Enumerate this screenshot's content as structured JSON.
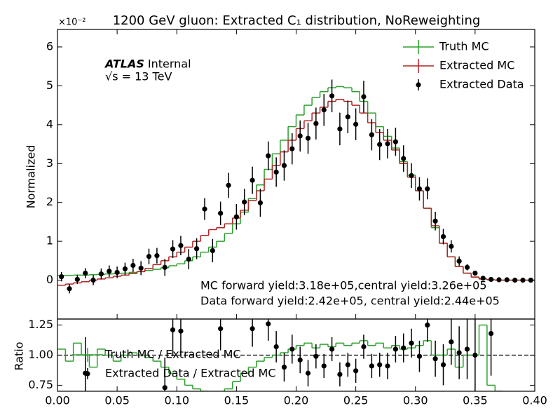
{
  "chart_data": [
    {
      "type": "histogram",
      "title": "1200 GeV gluon: Extracted C₁ distribution, NoReweighting",
      "ylabel": "Normalized",
      "y_multiplier": "×10⁻²",
      "annotations": [
        "ATLAS",
        "Internal",
        "√s = 13 TeV",
        "MC forward yield:3.18e+05,central yield:3.26e+05",
        "Data forward yield:2.42e+05, central yield:2.44e+05"
      ],
      "legend": "upper right",
      "xlim": [
        0,
        0.4
      ],
      "ylim": [
        -1.0,
        6.45
      ],
      "yticks": [
        0,
        1,
        2,
        3,
        4,
        5,
        6
      ],
      "bins": [
        0,
        0.0067,
        0.0133,
        0.02,
        0.0267,
        0.0333,
        0.04,
        0.0467,
        0.0533,
        0.06,
        0.0667,
        0.0733,
        0.08,
        0.0867,
        0.0933,
        0.1,
        0.1067,
        0.1133,
        0.12,
        0.1267,
        0.1333,
        0.14,
        0.1467,
        0.1533,
        0.16,
        0.1667,
        0.1733,
        0.18,
        0.1867,
        0.1933,
        0.2,
        0.2067,
        0.2133,
        0.22,
        0.2267,
        0.2333,
        0.24,
        0.2467,
        0.2533,
        0.26,
        0.2667,
        0.2733,
        0.28,
        0.2867,
        0.2933,
        0.3,
        0.3067,
        0.3133,
        0.32,
        0.3267,
        0.3333,
        0.34,
        0.3467,
        0.3533,
        0.36,
        0.3667,
        0.3733,
        0.38,
        0.3867,
        0.3933,
        0.4
      ],
      "series": [
        {
          "name": "Truth MC",
          "style": "step",
          "color": "#2ca02c",
          "values": [
            0.12,
            0.12,
            0.13,
            0.13,
            0.14,
            0.15,
            0.16,
            0.17,
            0.18,
            0.2,
            0.22,
            0.25,
            0.28,
            0.32,
            0.37,
            0.42,
            0.5,
            0.6,
            0.72,
            0.85,
            1.0,
            1.2,
            1.45,
            1.75,
            2.1,
            2.45,
            2.85,
            3.25,
            3.6,
            3.95,
            4.25,
            4.5,
            4.7,
            4.85,
            4.95,
            4.98,
            4.95,
            4.85,
            4.6,
            4.3,
            3.95,
            3.7,
            3.4,
            3.05,
            2.7,
            2.3,
            1.85,
            1.35,
            0.95,
            0.6,
            0.35,
            0.18,
            0.08,
            0.03,
            0.01,
            0,
            0,
            0,
            0,
            0
          ]
        },
        {
          "name": "Extracted MC",
          "style": "step",
          "color": "#b22222",
          "values": [
            -0.13,
            -0.1,
            -0.07,
            -0.04,
            0,
            0.03,
            0.06,
            0.1,
            0.13,
            0.17,
            0.22,
            0.3,
            0.4,
            0.5,
            0.6,
            0.72,
            0.85,
            1.0,
            1.15,
            1.3,
            1.35,
            1.45,
            1.6,
            1.8,
            2.05,
            2.3,
            2.6,
            2.95,
            3.3,
            3.6,
            3.9,
            4.1,
            4.3,
            4.45,
            4.6,
            4.65,
            4.6,
            4.5,
            4.3,
            4.05,
            3.8,
            3.6,
            3.35,
            3.0,
            2.65,
            2.3,
            1.85,
            1.4,
            0.95,
            0.6,
            0.35,
            0.18,
            0.08,
            0.03,
            0.01,
            0,
            0,
            0,
            0,
            0
          ]
        },
        {
          "name": "Extracted Data",
          "style": "points",
          "color": "#000000",
          "values": [
            0.09,
            -0.22,
            0.02,
            0.18,
            0.0,
            0.16,
            0.23,
            0.2,
            0.29,
            0.38,
            0.31,
            0.61,
            0.63,
            0.33,
            0.8,
            0.89,
            0.54,
            0.81,
            1.83,
            0.76,
            1.72,
            2.44,
            1.63,
            2.01,
            2.57,
            1.99,
            3.2,
            2.78,
            2.95,
            3.38,
            3.71,
            3.65,
            4.03,
            4.38,
            4.74,
            3.89,
            4.2,
            4.01,
            4.72,
            3.74,
            3.49,
            3.51,
            3.56,
            3.13,
            2.69,
            2.35,
            2.35,
            1.52,
            1.12,
            0.87,
            0.49,
            0.33,
            0.18,
            0.05,
            0.02,
            0.01,
            0.01,
            0,
            0,
            0
          ],
          "errors": [
            0.12,
            0.12,
            0.12,
            0.13,
            0.13,
            0.14,
            0.15,
            0.15,
            0.16,
            0.17,
            0.18,
            0.2,
            0.2,
            0.22,
            0.23,
            0.25,
            0.26,
            0.27,
            0.28,
            0.3,
            0.3,
            0.32,
            0.33,
            0.34,
            0.35,
            0.36,
            0.37,
            0.38,
            0.39,
            0.4,
            0.4,
            0.4,
            0.41,
            0.41,
            0.42,
            0.42,
            0.42,
            0.41,
            0.41,
            0.4,
            0.4,
            0.38,
            0.36,
            0.34,
            0.32,
            0.3,
            0.27,
            0.24,
            0.2,
            0.16,
            0.12,
            0.08,
            0.06,
            0.04,
            0.03,
            0.02,
            0.02,
            0.02,
            0.01,
            0.01
          ]
        }
      ]
    },
    {
      "type": "ratio",
      "ylabel": "Ratio",
      "legend": "upper left",
      "xlim": [
        0,
        0.4
      ],
      "xticks": [
        {
          "value": 0,
          "label": "0.00"
        },
        0.05,
        {
          "value": 0.1,
          "label": "0.10"
        },
        0.15,
        {
          "value": 0.2,
          "label": "0.20"
        },
        0.25,
        {
          "value": 0.3,
          "label": "0.30"
        },
        0.35,
        {
          "value": 0.4,
          "label": "0.40"
        }
      ],
      "ylim": [
        0.7,
        1.3
      ],
      "yticks": [
        0.75,
        {
          "value": 1,
          "label": "1.00"
        },
        1.25
      ],
      "reference_line": 1,
      "series": [
        {
          "name": "Truth MC / Extracted MC",
          "style": "step",
          "color": "#2ca02c",
          "values": [
            1.05,
            0.95,
            1.1,
            1.0,
            0.9,
            1.05,
            1.0,
            0.95,
            1.0,
            1.02,
            1.0,
            0.98,
            0.95,
            0.9,
            0.85,
            0.8,
            0.75,
            0.72,
            0.7,
            0.68,
            0.66,
            0.72,
            0.78,
            0.85,
            0.9,
            0.95,
            0.98,
            1.0,
            1.02,
            1.05,
            1.08,
            1.1,
            1.06,
            1.09,
            1.07,
            1.1,
            1.08,
            1.1,
            1.12,
            1.08,
            1.1,
            1.06,
            1.08,
            1.05,
            1.06,
            1.08,
            1.12,
            1.0,
            1.0,
            1.05,
            0.9,
            1.0,
            1.0,
            1.25,
            0.75,
            0.7,
            null,
            null,
            null,
            null
          ]
        },
        {
          "name": "Extracted Data / Extracted MC",
          "style": "points",
          "color": "#000000",
          "values": [
            null,
            null,
            null,
            0.85,
            null,
            null,
            null,
            null,
            null,
            null,
            null,
            null,
            null,
            0.73,
            1.21,
            1.2,
            null,
            null,
            null,
            null,
            1.22,
            null,
            null,
            null,
            1.22,
            null,
            1.26,
            1.07,
            0.9,
            1.05,
            0.96,
            0.85,
            0.99,
            0.91,
            1.05,
            0.84,
            0.92,
            0.87,
            1.07,
            0.91,
            0.92,
            0.91,
            1.05,
            1.06,
            1.1,
            0.99,
            1.25,
            0.97,
            0.92,
            1.11,
            1.02,
            1.05,
            1.0,
            null,
            1.18,
            null,
            null,
            null,
            null,
            null
          ],
          "errors": [
            null,
            null,
            null,
            0.3,
            null,
            null,
            null,
            null,
            null,
            null,
            null,
            null,
            null,
            0.25,
            0.22,
            0.2,
            null,
            null,
            null,
            null,
            0.18,
            null,
            null,
            null,
            0.15,
            null,
            0.14,
            0.13,
            0.12,
            0.12,
            0.11,
            0.11,
            0.1,
            0.1,
            0.1,
            0.1,
            0.1,
            0.1,
            0.1,
            0.1,
            0.1,
            0.11,
            0.11,
            0.12,
            0.12,
            0.13,
            0.14,
            0.15,
            0.17,
            0.19,
            0.22,
            0.25,
            0.3,
            null,
            0.35,
            null,
            null,
            null,
            null,
            null
          ]
        }
      ]
    }
  ]
}
